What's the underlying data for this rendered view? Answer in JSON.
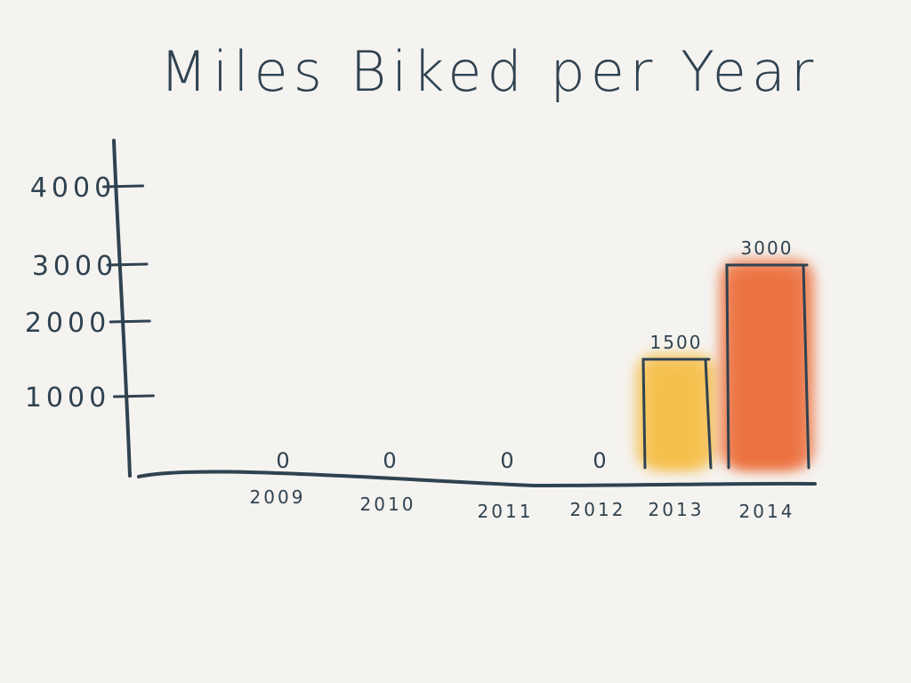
{
  "chart_data": {
    "type": "bar",
    "title": "Miles Biked per Year",
    "categories": [
      "2009",
      "2010",
      "2011",
      "2012",
      "2013",
      "2014"
    ],
    "values": [
      0,
      0,
      0,
      0,
      1500,
      3000
    ],
    "value_labels": [
      "0",
      "0",
      "0",
      "0",
      "1500",
      "3000"
    ],
    "ytick_labels": [
      "1000",
      "2000",
      "3000",
      "4000"
    ],
    "ytick_values": [
      1000,
      2000,
      3000,
      4000
    ],
    "ylim": [
      0,
      4000
    ],
    "xlabel": "",
    "ylabel": "",
    "grid": false,
    "legend": "none",
    "bar_colors": [
      "#f3b53a",
      "#f3b53a",
      "#f3b53a",
      "#f3b53a",
      "#f5bf48",
      "#ec6f3e"
    ],
    "ink_color": "#2f4250"
  }
}
